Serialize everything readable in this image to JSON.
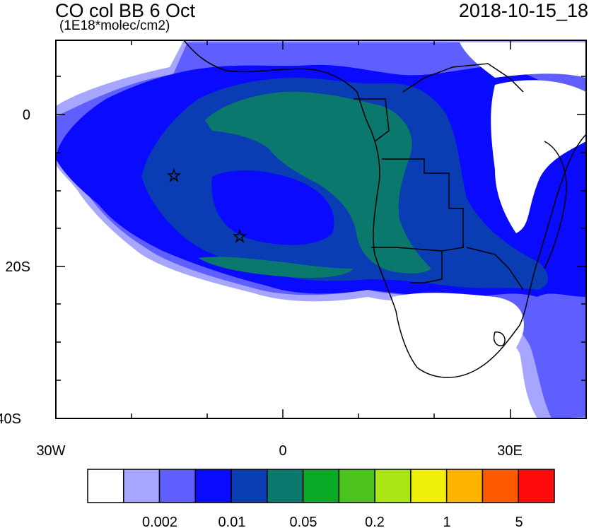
{
  "title": "CO col BB 6 Oct",
  "units": "(1E18*molec/cm2)",
  "timestamp": "2018-10-15_18",
  "axes": {
    "y_labels": [
      "0",
      "20S",
      "40S"
    ],
    "x_labels": [
      "30W",
      "0",
      "30E"
    ]
  },
  "colorbar": {
    "colors": [
      "#ffffff",
      "#a6a6ff",
      "#5f5fff",
      "#0a0aff",
      "#0a3cb4",
      "#0a786c",
      "#0aaa28",
      "#4cc31c",
      "#aae614",
      "#f0f00a",
      "#ffb400",
      "#ff5a00",
      "#ff0a0a"
    ],
    "labels": [
      "0.002",
      "0.01",
      "0.05",
      "0.2",
      "1",
      "5"
    ]
  },
  "markers": [
    "star",
    "star"
  ]
}
